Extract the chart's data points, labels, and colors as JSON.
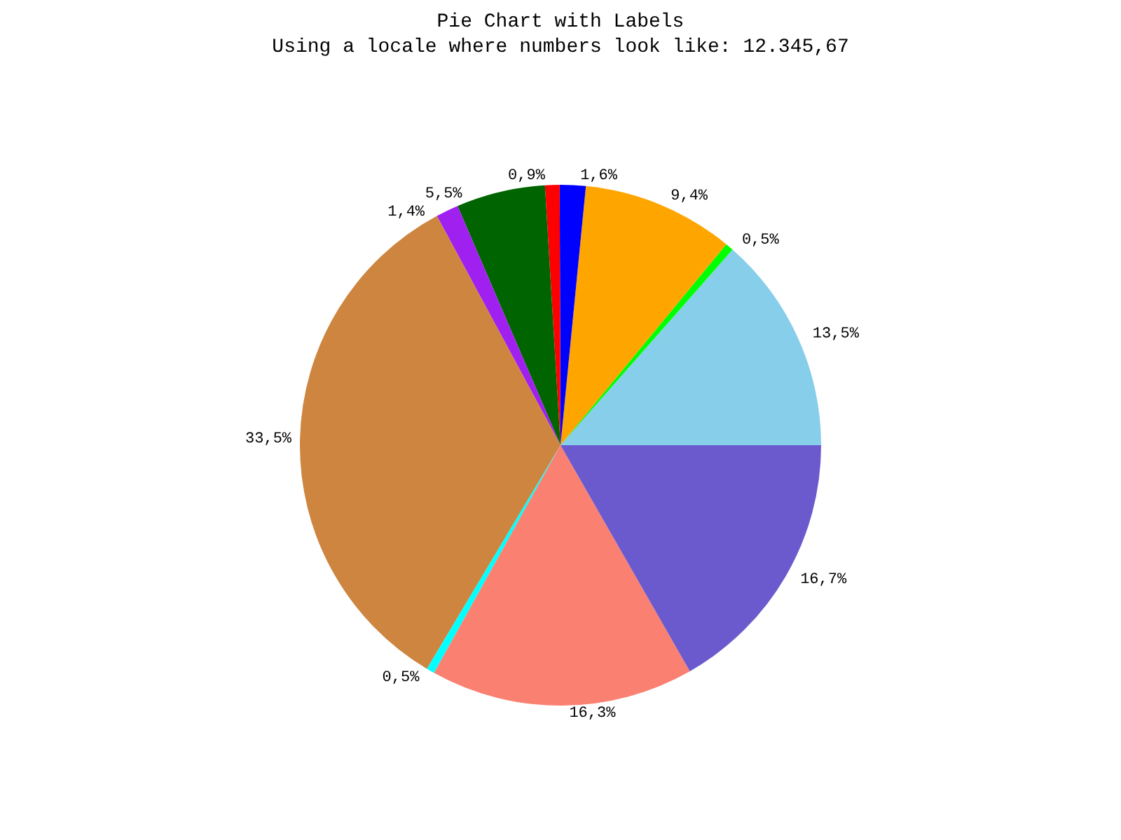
{
  "chart_data": {
    "type": "pie",
    "title": "Pie Chart with Labels",
    "subtitle": "Using a locale where numbers look like: 12.345,67",
    "categories": [
      null,
      null,
      null,
      null,
      null,
      null,
      null,
      null,
      null,
      null,
      null
    ],
    "values": [
      13.5,
      0.5,
      9.4,
      1.6,
      0.9,
      5.5,
      1.4,
      33.5,
      0.5,
      16.3,
      16.7
    ],
    "value_labels": [
      "13,5%",
      "0,5%",
      "9,4%",
      "1,6%",
      "0,9%",
      "5,5%",
      "1,4%",
      "33,5%",
      "0,5%",
      "16,3%",
      "16,7%"
    ],
    "colors": [
      "#87ceeb",
      "#00ff00",
      "#ffa500",
      "#0000ff",
      "#ff0000",
      "#006400",
      "#a020f0",
      "#cd853f",
      "#00ffff",
      "#fa8072",
      "#6a5acd"
    ]
  }
}
